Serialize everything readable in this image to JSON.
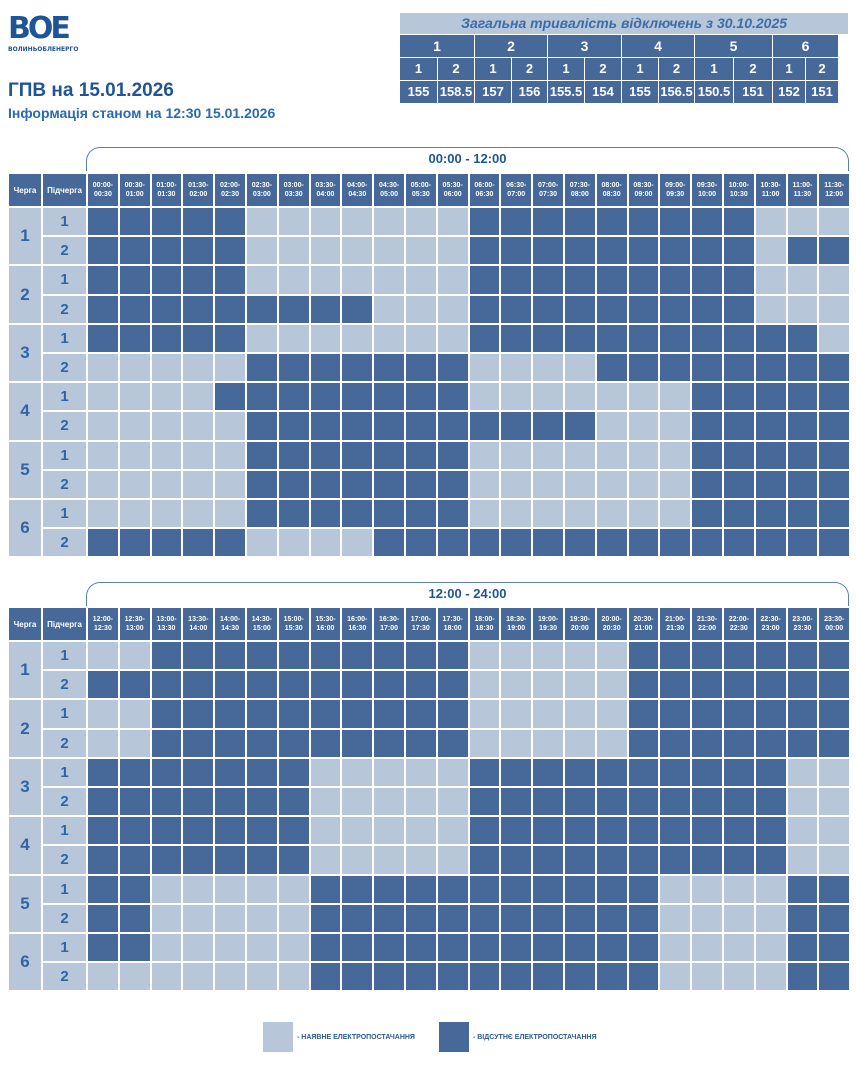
{
  "logo": {
    "letters": "ВОЕ",
    "caption": "ВОЛИНЬОБЛЕНЕРГО"
  },
  "title": "ГПВ на 15.01.2026",
  "subtitle": "Інформація станом на 12:30 15.01.2026",
  "summary": {
    "heading": "Загальна тривалість відключень з 30.10.2025",
    "queues": [
      "1",
      "2",
      "3",
      "4",
      "5",
      "6"
    ],
    "subqueues": [
      "1",
      "2",
      "1",
      "2",
      "1",
      "2",
      "1",
      "2",
      "1",
      "2",
      "1",
      "2"
    ],
    "values": [
      "155",
      "158.5",
      "157",
      "156",
      "155.5",
      "154",
      "155",
      "156.5",
      "150.5",
      "151",
      "152",
      "151"
    ]
  },
  "tables": [
    {
      "range": "00:00 - 12:00",
      "col_queue": "Черга",
      "col_sub": "Підчерга",
      "slots": [
        "00:00-00:30",
        "00:30-01:00",
        "01:00-01:30",
        "01:30-02:00",
        "02:00-02:30",
        "02:30-03:00",
        "03:00-03:30",
        "03:30-04:00",
        "04:00-04:30",
        "04:30-05:00",
        "05:00-05:30",
        "05:30-06:00",
        "06:00-06:30",
        "06:30-07:00",
        "07:00-07:30",
        "07:30-08:00",
        "08:00-08:30",
        "08:30-09:00",
        "09:00-09:30",
        "09:30-10:00",
        "10:00-10:30",
        "10:30-11:00",
        "11:00-11:30",
        "11:30-12:00"
      ],
      "rows": [
        {
          "queue": "1",
          "sub": "1",
          "cells": "111110000000111111111000"
        },
        {
          "queue": "1",
          "sub": "2",
          "cells": "111110000000111111111011"
        },
        {
          "queue": "2",
          "sub": "1",
          "cells": "111110000000111111111000"
        },
        {
          "queue": "2",
          "sub": "2",
          "cells": "111111111000111111111000"
        },
        {
          "queue": "3",
          "sub": "1",
          "cells": "111110000000111111111110"
        },
        {
          "queue": "3",
          "sub": "2",
          "cells": "000001111111000011111111"
        },
        {
          "queue": "4",
          "sub": "1",
          "cells": "000011111111000000011111"
        },
        {
          "queue": "4",
          "sub": "2",
          "cells": "000001111111111100011111"
        },
        {
          "queue": "5",
          "sub": "1",
          "cells": "000001111111000000011111"
        },
        {
          "queue": "5",
          "sub": "2",
          "cells": "000001111111000000011111"
        },
        {
          "queue": "6",
          "sub": "1",
          "cells": "000001111111000000011111"
        },
        {
          "queue": "6",
          "sub": "2",
          "cells": "111110000111111111111111"
        }
      ]
    },
    {
      "range": "12:00 - 24:00",
      "col_queue": "Черга",
      "col_sub": "Підчерга",
      "slots": [
        "12:00-12:30",
        "12:30-13:00",
        "13:00-13:30",
        "13:30-14:00",
        "14:00-14:30",
        "14:30-15:00",
        "15:00-15:30",
        "15:30-16:00",
        "16:00-16:30",
        "16:30-17:00",
        "17:00-17:30",
        "17:30-18:00",
        "18:00-18:30",
        "18:30-19:00",
        "19:00-19:30",
        "19:30-20:00",
        "20:00-20:30",
        "20:30-21:00",
        "21:00-21:30",
        "21:30-22:00",
        "22:00-22:30",
        "22:30-23:00",
        "23:00-23:30",
        "23:30-00:00"
      ],
      "rows": [
        {
          "queue": "1",
          "sub": "1",
          "cells": "001111111111000001111111"
        },
        {
          "queue": "1",
          "sub": "2",
          "cells": "111111111111000001111111"
        },
        {
          "queue": "2",
          "sub": "1",
          "cells": "001111111111000001111111"
        },
        {
          "queue": "2",
          "sub": "2",
          "cells": "001111111111000001111111"
        },
        {
          "queue": "3",
          "sub": "1",
          "cells": "111111100000111111111100"
        },
        {
          "queue": "3",
          "sub": "2",
          "cells": "111111100000111111111100"
        },
        {
          "queue": "4",
          "sub": "1",
          "cells": "111111100000111111111100"
        },
        {
          "queue": "4",
          "sub": "2",
          "cells": "111111100000111111111100"
        },
        {
          "queue": "5",
          "sub": "1",
          "cells": "110000011111111111000011"
        },
        {
          "queue": "5",
          "sub": "2",
          "cells": "110000011111111111000011"
        },
        {
          "queue": "6",
          "sub": "1",
          "cells": "110000011111111111000011"
        },
        {
          "queue": "6",
          "sub": "2",
          "cells": "000000011111111111000011"
        }
      ]
    }
  ],
  "legend": {
    "on_label": "- НАЯВНЕ ЕЛЕКТРОПОСТАЧАННЯ",
    "off_label": "- ВІДСУТНЄ ЕЛЕКТРОПОСТАЧАННЯ"
  },
  "colors": {
    "on": "#b7c6d8",
    "off": "#46699a",
    "accent": "#1f5597"
  }
}
